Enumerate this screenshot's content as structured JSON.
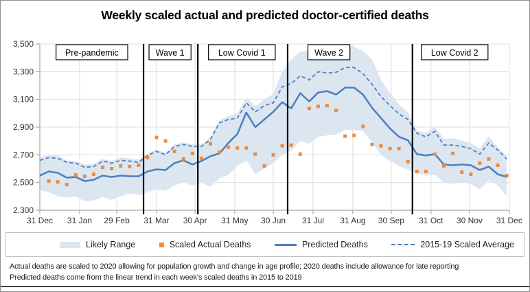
{
  "title": "Weekly scaled actual and predicted doctor-certified deaths",
  "colors": {
    "band": "#dce6f1",
    "predicted_line": "#4f81bd",
    "average_dashed_line": "#4f81bd",
    "actual_points": "#ed8b3e",
    "gridline": "#dcdcdc",
    "axis": "#a6a6a6",
    "separator": "#000000",
    "period_box_border": "#000000",
    "text": "#262626"
  },
  "chart_data": {
    "type": "line",
    "title": "Weekly scaled actual and predicted doctor-certified deaths",
    "xlabel": "",
    "ylabel": "",
    "ylim": [
      2300,
      3500
    ],
    "ytick_step": 200,
    "yticks": [
      2300,
      2500,
      2700,
      2900,
      3100,
      3300,
      3500
    ],
    "grid": true,
    "legend_position": "bottom",
    "x_unit": "weeks from 31 Dec",
    "x_domain_weeks": [
      0,
      52.3
    ],
    "x_ticks": [
      {
        "label": "31 Dec",
        "week": 0
      },
      {
        "label": "31 Jan",
        "week": 4.43
      },
      {
        "label": "29 Feb",
        "week": 8.57
      },
      {
        "label": "31 Mar",
        "week": 13.0
      },
      {
        "label": "30 Apr",
        "week": 17.29
      },
      {
        "label": "31 May",
        "week": 21.71
      },
      {
        "label": "30 Jun",
        "week": 26.0
      },
      {
        "label": "31 Jul",
        "week": 30.43
      },
      {
        "label": "31 Aug",
        "week": 34.86
      },
      {
        "label": "30 Sep",
        "week": 39.14
      },
      {
        "label": "31 Oct",
        "week": 43.57
      },
      {
        "label": "30 Nov",
        "week": 47.86
      },
      {
        "label": "31 Dec",
        "week": 52.29
      }
    ],
    "separator_weeks": [
      11.55,
      17.6,
      27.6,
      41.5
    ],
    "period_annotations": [
      {
        "label": "Pre-pandemic",
        "center_week": 5.8
      },
      {
        "label": "Wave 1",
        "center_week": 14.5
      },
      {
        "label": "Low Covid 1",
        "center_week": 22.5
      },
      {
        "label": "Wave 2",
        "center_week": 32.2
      },
      {
        "label": "Low Covid 2",
        "center_week": 46.2
      }
    ],
    "series": [
      {
        "name": "Likely Range",
        "type": "area-band",
        "color": "#dce6f1",
        "upper": [
          2680,
          2700,
          2695,
          2660,
          2655,
          2630,
          2635,
          2670,
          2655,
          2680,
          2675,
          2665,
          2710,
          2740,
          2715,
          2775,
          2790,
          2775,
          2775,
          2830,
          2950,
          2980,
          3000,
          3115,
          3050,
          3100,
          3140,
          3300,
          3390,
          3445,
          3450,
          3460,
          3465,
          3470,
          3485,
          3480,
          3450,
          3390,
          3240,
          3145,
          3065,
          3005,
          2875,
          2860,
          2905,
          2815,
          2820,
          2805,
          2785,
          2745,
          2835,
          2755,
          2690
        ],
        "lower": [
          2445,
          2430,
          2400,
          2390,
          2400,
          2365,
          2370,
          2395,
          2375,
          2400,
          2420,
          2410,
          2430,
          2450,
          2440,
          2480,
          2500,
          2480,
          2500,
          2470,
          2530,
          2555,
          2620,
          2660,
          2560,
          2600,
          2640,
          2700,
          2730,
          2800,
          2780,
          2830,
          2840,
          2845,
          2880,
          2880,
          2870,
          2790,
          2700,
          2655,
          2620,
          2595,
          2565,
          2550,
          2555,
          2500,
          2490,
          2500,
          2490,
          2450,
          2515,
          2480,
          2400
        ]
      },
      {
        "name": "Scaled Actual Deaths",
        "type": "scatter-square",
        "color": "#ed8b3e",
        "values": [
          null,
          2510,
          2505,
          2485,
          2555,
          2545,
          2560,
          2610,
          2600,
          2620,
          2615,
          2625,
          2680,
          2825,
          2800,
          2725,
          2670,
          2710,
          2675,
          2780,
          2720,
          2755,
          2750,
          2750,
          2705,
          2620,
          2700,
          2765,
          2770,
          2705,
          3035,
          3050,
          3055,
          3020,
          2835,
          2840,
          2905,
          2775,
          2765,
          2745,
          2745,
          2650,
          2580,
          2580,
          2705,
          2620,
          2710,
          2575,
          2560,
          2640,
          2670,
          2625,
          2550
        ]
      },
      {
        "name": "Predicted Deaths",
        "type": "line",
        "color": "#4f81bd",
        "values": [
          2550,
          2580,
          2570,
          2535,
          2540,
          2510,
          2520,
          2550,
          2540,
          2550,
          2545,
          2545,
          2580,
          2595,
          2590,
          2640,
          2660,
          2630,
          2655,
          2690,
          2710,
          2785,
          2850,
          3005,
          2900,
          2955,
          3010,
          3080,
          3035,
          3145,
          3085,
          3150,
          3160,
          3135,
          3185,
          3185,
          3135,
          3040,
          2965,
          2890,
          2830,
          2805,
          2705,
          2695,
          2705,
          2630,
          2625,
          2630,
          2625,
          2590,
          2615,
          2560,
          2540
        ]
      },
      {
        "name": "2015-19 Scaled Average",
        "type": "line-dashed",
        "color": "#4f81bd",
        "values": [
          2660,
          2680,
          2675,
          2645,
          2640,
          2610,
          2615,
          2655,
          2640,
          2660,
          2655,
          2645,
          2695,
          2725,
          2700,
          2760,
          2775,
          2760,
          2760,
          2810,
          2930,
          2955,
          2965,
          3075,
          3010,
          3055,
          3075,
          3190,
          3215,
          3270,
          3240,
          3300,
          3290,
          3295,
          3330,
          3330,
          3285,
          3210,
          3120,
          3055,
          2995,
          2955,
          2855,
          2830,
          2870,
          2770,
          2770,
          2760,
          2745,
          2705,
          2785,
          2735,
          2670
        ]
      }
    ]
  },
  "legend": {
    "items": [
      {
        "label": "Likely Range"
      },
      {
        "label": "Scaled Actual Deaths"
      },
      {
        "label": "Predicted Deaths"
      },
      {
        "label": "2015-19 Scaled Average"
      }
    ]
  },
  "footnotes": [
    "Actual deaths are scaled to 2020 allowing for population growth and change in age profile; 2020 deaths include allowance for late reporting",
    "Predicted deaths come from the linear trend in each week's scaled deaths in 2015 to 2019"
  ]
}
